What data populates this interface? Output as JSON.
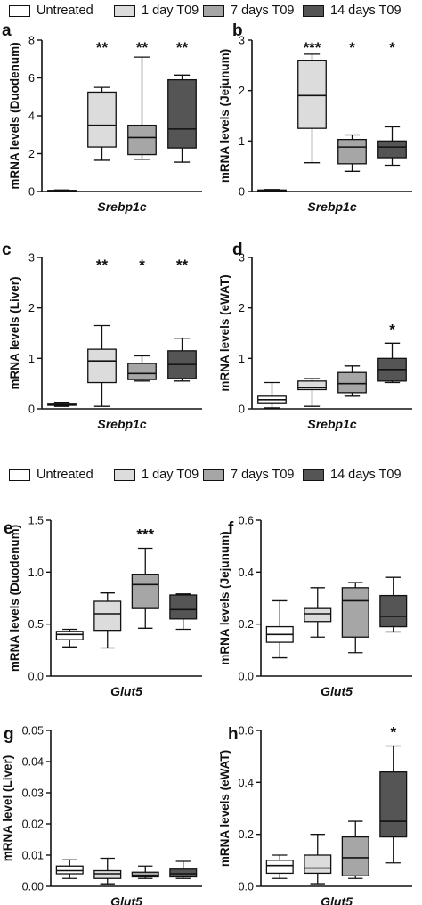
{
  "legend": [
    {
      "label": "Untreated",
      "color": "#ffffff"
    },
    {
      "label": "1 day T09",
      "color": "#dcdcdc"
    },
    {
      "label": "7 days T09",
      "color": "#a6a6a6"
    },
    {
      "label": "14 days T09",
      "color": "#555555"
    }
  ],
  "chart_data": [
    {
      "type": "boxplot",
      "panel_letter": "a",
      "xlabel": "Srebp1c",
      "ylabel": "mRNA levels (Duodenum)",
      "ylim": [
        0,
        8
      ],
      "yticks": [
        "0",
        "2",
        "4",
        "6",
        "8"
      ],
      "series": [
        {
          "name": "Untreated",
          "min": 0.0,
          "q1": 0.02,
          "median": 0.04,
          "q3": 0.06,
          "max": 0.08,
          "significance": ""
        },
        {
          "name": "1 day T09",
          "min": 1.65,
          "q1": 2.35,
          "median": 3.5,
          "q3": 5.25,
          "max": 5.5,
          "significance": "**"
        },
        {
          "name": "7 days T09",
          "min": 1.7,
          "q1": 1.95,
          "median": 2.85,
          "q3": 3.5,
          "max": 7.1,
          "significance": "**"
        },
        {
          "name": "14 days T09",
          "min": 1.55,
          "q1": 2.3,
          "median": 3.3,
          "q3": 5.9,
          "max": 6.15,
          "significance": "**"
        }
      ]
    },
    {
      "type": "boxplot",
      "panel_letter": "b",
      "xlabel": "Srebp1c",
      "ylabel": "mRNA levels (Jejunum)",
      "ylim": [
        0,
        3
      ],
      "yticks": [
        "0",
        "1",
        "2",
        "3"
      ],
      "series": [
        {
          "name": "Untreated",
          "min": 0.0,
          "q1": 0.01,
          "median": 0.02,
          "q3": 0.03,
          "max": 0.04,
          "significance": ""
        },
        {
          "name": "1 day T09",
          "min": 0.57,
          "q1": 1.25,
          "median": 1.9,
          "q3": 2.6,
          "max": 2.72,
          "significance": "***"
        },
        {
          "name": "7 days T09",
          "min": 0.4,
          "q1": 0.55,
          "median": 0.88,
          "q3": 1.03,
          "max": 1.12,
          "significance": "*"
        },
        {
          "name": "14 days T09",
          "min": 0.52,
          "q1": 0.67,
          "median": 0.88,
          "q3": 1.0,
          "max": 1.28,
          "significance": "*"
        }
      ]
    },
    {
      "type": "boxplot",
      "panel_letter": "c",
      "xlabel": "Srebp1c",
      "ylabel": "mRNA levels (Liver)",
      "ylim": [
        0,
        3
      ],
      "yticks": [
        "0",
        "1",
        "2",
        "3"
      ],
      "series": [
        {
          "name": "Untreated",
          "min": 0.05,
          "q1": 0.07,
          "median": 0.09,
          "q3": 0.11,
          "max": 0.13,
          "significance": ""
        },
        {
          "name": "1 day T09",
          "min": 0.05,
          "q1": 0.52,
          "median": 0.95,
          "q3": 1.18,
          "max": 1.65,
          "significance": "**"
        },
        {
          "name": "7 days T09",
          "min": 0.55,
          "q1": 0.58,
          "median": 0.7,
          "q3": 0.9,
          "max": 1.05,
          "significance": "*"
        },
        {
          "name": "14 days T09",
          "min": 0.55,
          "q1": 0.6,
          "median": 0.88,
          "q3": 1.15,
          "max": 1.4,
          "significance": "**"
        }
      ]
    },
    {
      "type": "boxplot",
      "panel_letter": "d",
      "xlabel": "Srebp1c",
      "ylabel": "mRNA levels (eWAT)",
      "ylim": [
        0,
        3
      ],
      "yticks": [
        "0",
        "1",
        "2",
        "3"
      ],
      "series": [
        {
          "name": "Untreated",
          "min": 0.02,
          "q1": 0.12,
          "median": 0.18,
          "q3": 0.25,
          "max": 0.52,
          "significance": ""
        },
        {
          "name": "1 day T09",
          "min": 0.05,
          "q1": 0.38,
          "median": 0.42,
          "q3": 0.55,
          "max": 0.6,
          "significance": ""
        },
        {
          "name": "7 days T09",
          "min": 0.25,
          "q1": 0.32,
          "median": 0.5,
          "q3": 0.72,
          "max": 0.85,
          "significance": ""
        },
        {
          "name": "14 days T09",
          "min": 0.52,
          "q1": 0.55,
          "median": 0.78,
          "q3": 1.0,
          "max": 1.3,
          "significance": "*"
        }
      ]
    },
    {
      "type": "boxplot",
      "panel_letter": "e",
      "xlabel": "Glut5",
      "ylabel": "mRNA levels (Duodenum)",
      "ylim": [
        0,
        1.5
      ],
      "yticks": [
        "0.0",
        "0.5",
        "1.0",
        "1.5"
      ],
      "series": [
        {
          "name": "Untreated",
          "min": 0.28,
          "q1": 0.35,
          "median": 0.4,
          "q3": 0.43,
          "max": 0.45,
          "significance": ""
        },
        {
          "name": "1 day T09",
          "min": 0.27,
          "q1": 0.44,
          "median": 0.6,
          "q3": 0.72,
          "max": 0.8,
          "significance": ""
        },
        {
          "name": "7 days T09",
          "min": 0.46,
          "q1": 0.65,
          "median": 0.88,
          "q3": 0.98,
          "max": 1.23,
          "significance": "***"
        },
        {
          "name": "14 days T09",
          "min": 0.45,
          "q1": 0.55,
          "median": 0.64,
          "q3": 0.78,
          "max": 0.79,
          "significance": ""
        }
      ]
    },
    {
      "type": "boxplot",
      "panel_letter": "f",
      "xlabel": "Glut5",
      "ylabel": "mRNA levels (Jejunum)",
      "ylim": [
        0,
        0.6
      ],
      "yticks": [
        "0.0",
        "0.2",
        "0.4",
        "0.6"
      ],
      "series": [
        {
          "name": "Untreated",
          "min": 0.07,
          "q1": 0.13,
          "median": 0.16,
          "q3": 0.19,
          "max": 0.29,
          "significance": ""
        },
        {
          "name": "1 day T09",
          "min": 0.15,
          "q1": 0.21,
          "median": 0.24,
          "q3": 0.26,
          "max": 0.34,
          "significance": ""
        },
        {
          "name": "7 days T09",
          "min": 0.09,
          "q1": 0.15,
          "median": 0.29,
          "q3": 0.34,
          "max": 0.36,
          "significance": ""
        },
        {
          "name": "14 days T09",
          "min": 0.17,
          "q1": 0.19,
          "median": 0.23,
          "q3": 0.31,
          "max": 0.38,
          "significance": ""
        }
      ]
    },
    {
      "type": "boxplot",
      "panel_letter": "g",
      "xlabel": "Glut5",
      "ylabel": "mRNA level (Liver)",
      "ylim": [
        0,
        0.05
      ],
      "yticks": [
        "0.00",
        "0.01",
        "0.02",
        "0.03",
        "0.04",
        "0.05"
      ],
      "series": [
        {
          "name": "Untreated",
          "min": 0.0025,
          "q1": 0.004,
          "median": 0.005,
          "q3": 0.0065,
          "max": 0.0085,
          "significance": ""
        },
        {
          "name": "1 day T09",
          "min": 0.0008,
          "q1": 0.0025,
          "median": 0.004,
          "q3": 0.005,
          "max": 0.009,
          "significance": ""
        },
        {
          "name": "7 days T09",
          "min": 0.0025,
          "q1": 0.003,
          "median": 0.0035,
          "q3": 0.0045,
          "max": 0.0065,
          "significance": ""
        },
        {
          "name": "14 days T09",
          "min": 0.0025,
          "q1": 0.003,
          "median": 0.004,
          "q3": 0.0055,
          "max": 0.008,
          "significance": ""
        }
      ]
    },
    {
      "type": "boxplot",
      "panel_letter": "h",
      "xlabel": "Glut5",
      "ylabel": "mRNA levels (eWAT)",
      "ylim": [
        0,
        0.6
      ],
      "yticks": [
        "0.0",
        "0.2",
        "0.4",
        "0.6"
      ],
      "series": [
        {
          "name": "Untreated",
          "min": 0.03,
          "q1": 0.05,
          "median": 0.08,
          "q3": 0.1,
          "max": 0.12,
          "significance": ""
        },
        {
          "name": "1 day T09",
          "min": 0.01,
          "q1": 0.05,
          "median": 0.07,
          "q3": 0.12,
          "max": 0.2,
          "significance": ""
        },
        {
          "name": "7 days T09",
          "min": 0.03,
          "q1": 0.04,
          "median": 0.11,
          "q3": 0.19,
          "max": 0.25,
          "significance": ""
        },
        {
          "name": "14 days T09",
          "min": 0.09,
          "q1": 0.19,
          "median": 0.25,
          "q3": 0.44,
          "max": 0.54,
          "significance": "*"
        }
      ]
    }
  ]
}
